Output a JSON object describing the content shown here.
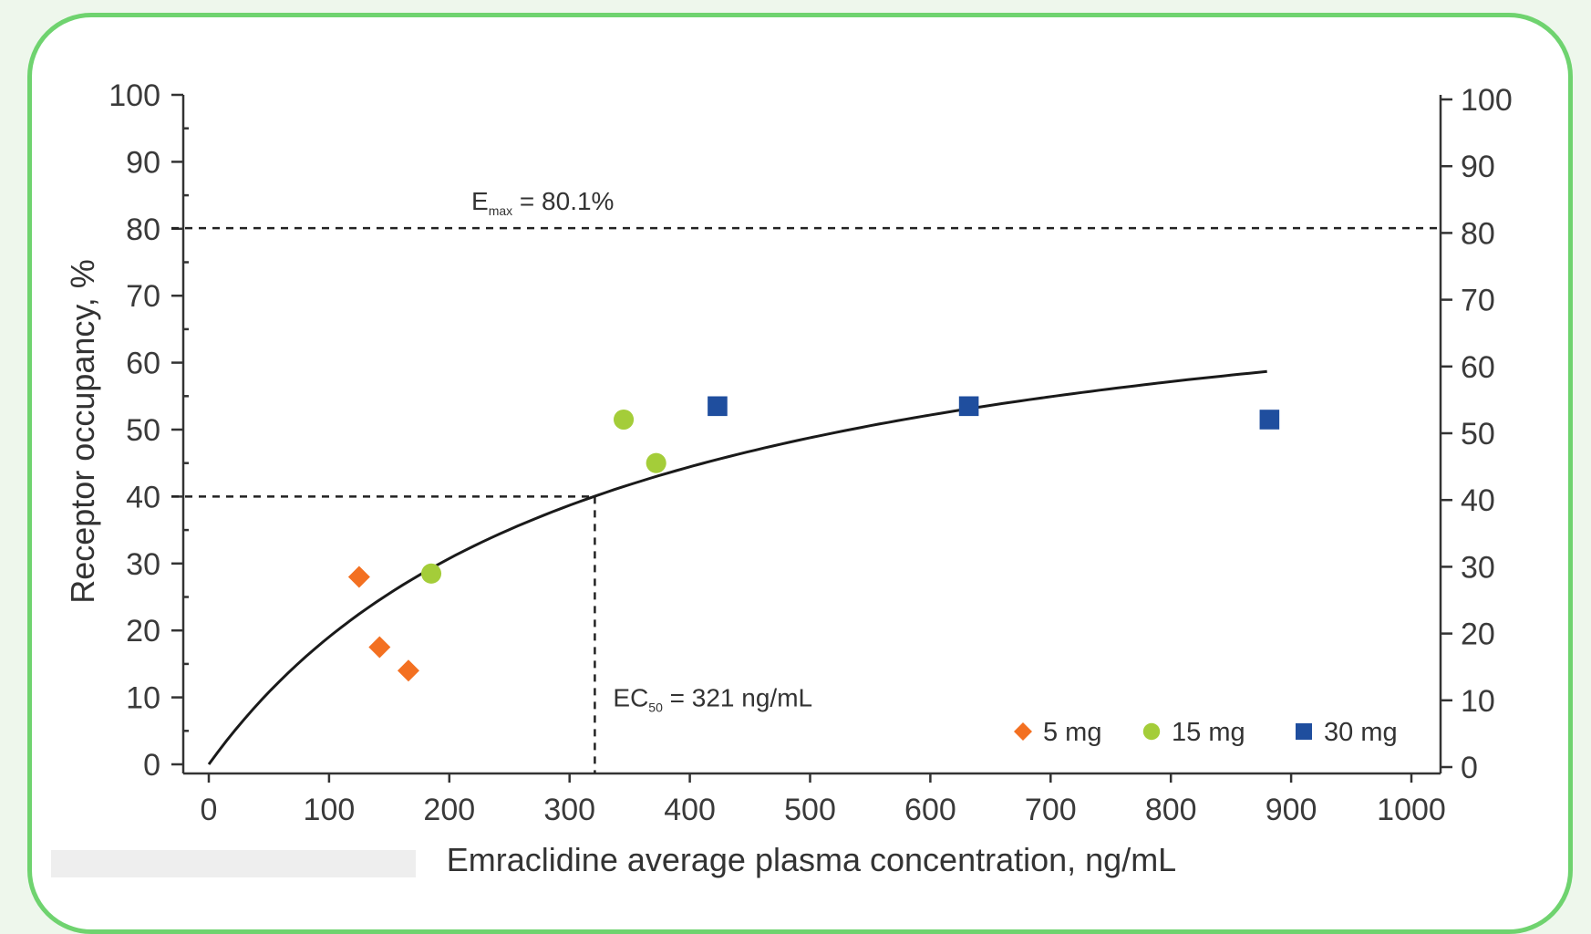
{
  "chart_data": {
    "type": "scatter",
    "xlabel": "Emraclidine average plasma concentration, ng/mL",
    "ylabel": "Receptor occupancy, %",
    "xlim": [
      0,
      1000
    ],
    "ylim": [
      0,
      100
    ],
    "x_ticks": [
      0,
      100,
      200,
      300,
      400,
      500,
      600,
      700,
      800,
      900,
      1000
    ],
    "y_ticks": [
      0,
      10,
      20,
      30,
      40,
      50,
      60,
      70,
      80,
      90,
      100
    ],
    "right_axis_ticks": [
      0,
      10,
      20,
      30,
      40,
      50,
      60,
      70,
      80,
      90,
      100
    ],
    "emax": {
      "value": 80.1,
      "label_prefix": "E",
      "label_sub": "max",
      "label_suffix": " = 80.1%"
    },
    "ec50": {
      "x": 321,
      "y": 40,
      "label_prefix": "EC",
      "label_sub": "50",
      "label_suffix": " = 321 ng/mL"
    },
    "fit_curve": {
      "type": "emax",
      "emax": 80.1,
      "ec50": 321,
      "x_range": [
        0,
        880
      ]
    },
    "series": [
      {
        "name": "5 mg",
        "marker": "diamond",
        "color": "#f37021",
        "points": [
          [
            125,
            28
          ],
          [
            142,
            17.5
          ],
          [
            166,
            14
          ]
        ]
      },
      {
        "name": "15 mg",
        "marker": "circle",
        "color": "#a4cd39",
        "points": [
          [
            185,
            28.5
          ],
          [
            345,
            51.5
          ],
          [
            372,
            45
          ]
        ]
      },
      {
        "name": "30 mg",
        "marker": "square",
        "color": "#1f4e9e",
        "points": [
          [
            423,
            53.5
          ],
          [
            632,
            53.5
          ],
          [
            882,
            51.5
          ]
        ]
      }
    ],
    "grid": false,
    "legend_position": "bottom-right"
  }
}
